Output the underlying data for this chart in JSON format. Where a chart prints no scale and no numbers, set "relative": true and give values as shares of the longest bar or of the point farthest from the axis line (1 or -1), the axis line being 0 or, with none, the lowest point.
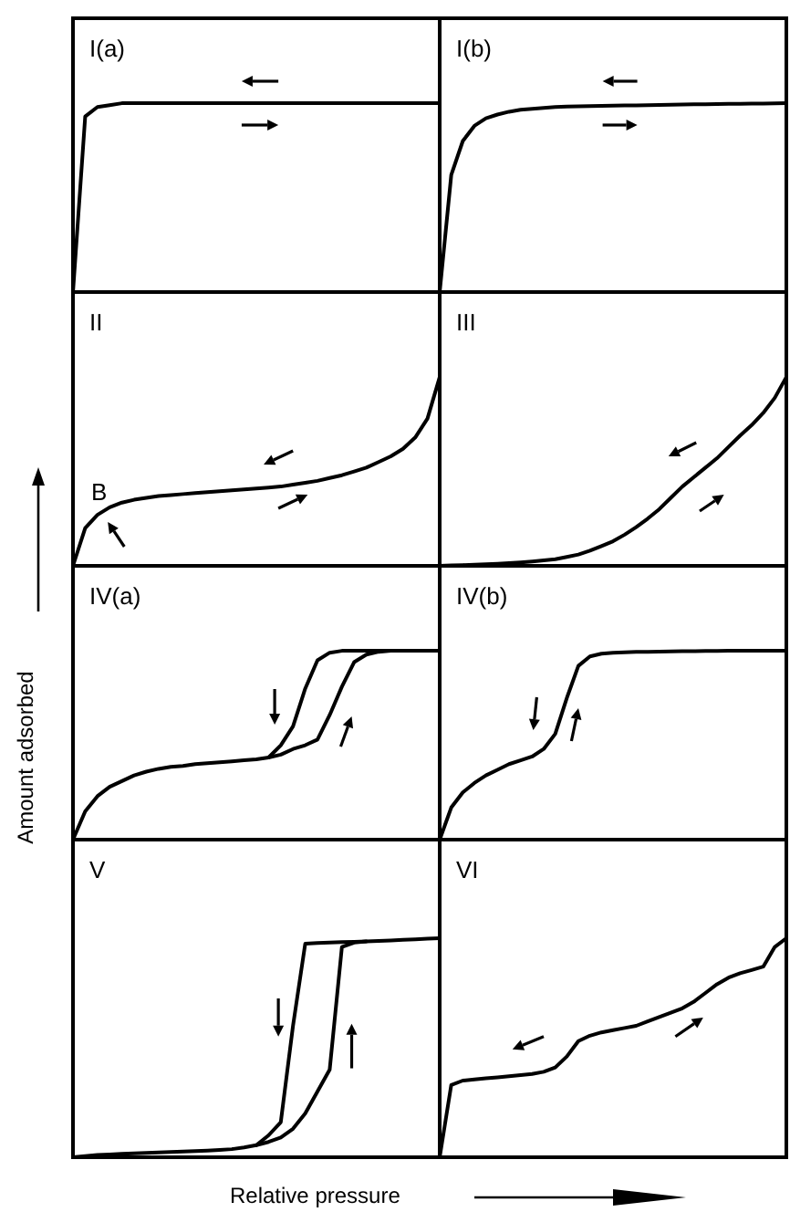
{
  "chart_data": [
    {
      "type": "line",
      "title": "I(a)",
      "relative": true,
      "categories": [
        null,
        null,
        null,
        null,
        null,
        null,
        null,
        null,
        null,
        null,
        null,
        null,
        null,
        null,
        null,
        null,
        null,
        null,
        null,
        null,
        null,
        null,
        null,
        null,
        null,
        null,
        null,
        null,
        null,
        null,
        null
      ],
      "series": [
        {
          "color": "#000000",
          "values": [
            0,
            0.93,
            0.98,
            0.99,
            1,
            1,
            1,
            1,
            1,
            1,
            1,
            1,
            1,
            1,
            1,
            1,
            1,
            1,
            1,
            1,
            1,
            1,
            1,
            1,
            1,
            1,
            1,
            1,
            1,
            1,
            1
          ]
        }
      ]
    },
    {
      "type": "line",
      "title": "I(b)",
      "relative": true,
      "categories": [
        null,
        null,
        null,
        null,
        null,
        null,
        null,
        null,
        null,
        null,
        null,
        null,
        null,
        null,
        null,
        null,
        null,
        null,
        null,
        null,
        null,
        null,
        null,
        null,
        null,
        null,
        null,
        null,
        null,
        null,
        null
      ],
      "series": [
        {
          "color": "#000000",
          "values": [
            0,
            0.62,
            0.8,
            0.88,
            0.92,
            0.94,
            0.955,
            0.965,
            0.97,
            0.975,
            0.98,
            0.982,
            0.984,
            0.985,
            0.986,
            0.987,
            0.988,
            0.989,
            0.99,
            0.991,
            0.992,
            0.993,
            0.994,
            0.995,
            0.996,
            0.997,
            0.997,
            0.998,
            0.998,
            0.999,
            1
          ]
        }
      ]
    },
    {
      "type": "line",
      "title": "II",
      "relative": true,
      "annotations": [
        "B"
      ],
      "categories": [
        null,
        null,
        null,
        null,
        null,
        null,
        null,
        null,
        null,
        null,
        null,
        null,
        null,
        null,
        null,
        null,
        null,
        null,
        null,
        null,
        null,
        null,
        null,
        null,
        null,
        null,
        null,
        null,
        null,
        null,
        null
      ],
      "series": [
        {
          "color": "#000000",
          "values": [
            0,
            0.2,
            0.27,
            0.31,
            0.335,
            0.35,
            0.36,
            0.37,
            0.375,
            0.38,
            0.385,
            0.39,
            0.395,
            0.4,
            0.405,
            0.41,
            0.415,
            0.42,
            0.43,
            0.44,
            0.45,
            0.465,
            0.48,
            0.5,
            0.52,
            0.55,
            0.58,
            0.62,
            0.68,
            0.78,
            1
          ]
        }
      ]
    },
    {
      "type": "line",
      "title": "III",
      "relative": true,
      "categories": [
        null,
        null,
        null,
        null,
        null,
        null,
        null,
        null,
        null,
        null,
        null,
        null,
        null,
        null,
        null,
        null,
        null,
        null,
        null,
        null,
        null,
        null,
        null,
        null,
        null,
        null,
        null,
        null,
        null,
        null,
        null
      ],
      "series": [
        {
          "color": "#000000",
          "values": [
            0,
            0.002,
            0.004,
            0.006,
            0.008,
            0.011,
            0.014,
            0.018,
            0.023,
            0.029,
            0.035,
            0.047,
            0.06,
            0.08,
            0.105,
            0.13,
            0.165,
            0.205,
            0.25,
            0.3,
            0.36,
            0.42,
            0.47,
            0.52,
            0.57,
            0.63,
            0.69,
            0.745,
            0.81,
            0.89,
            1
          ]
        }
      ]
    },
    {
      "type": "line",
      "title": "IV(a)",
      "ylabel": "Amount adsorbed",
      "relative": true,
      "categories": [
        null,
        null,
        null,
        null,
        null,
        null,
        null,
        null,
        null,
        null,
        null,
        null,
        null,
        null,
        null,
        null,
        null,
        null,
        null,
        null,
        null,
        null,
        null,
        null,
        null,
        null,
        null,
        null,
        null,
        null,
        null
      ],
      "series": [
        {
          "color": "#000000",
          "values": [
            0,
            0.15,
            0.23,
            0.28,
            0.31,
            0.34,
            0.36,
            0.375,
            0.385,
            0.39,
            0.4,
            0.405,
            0.41,
            0.415,
            0.42,
            0.425,
            0.435,
            0.45,
            0.48,
            0.5,
            0.53,
            0.66,
            0.81,
            0.94,
            0.98,
            0.995,
            1,
            1,
            1,
            1,
            1
          ]
        },
        {
          "color": "#000000",
          "values": [
            null,
            null,
            null,
            null,
            null,
            null,
            null,
            null,
            null,
            null,
            null,
            null,
            null,
            null,
            null,
            null,
            0.435,
            0.5,
            0.6,
            0.8,
            0.95,
            0.99,
            1,
            1,
            1,
            1,
            1,
            null,
            null,
            null,
            null
          ]
        }
      ]
    },
    {
      "type": "line",
      "title": "IV(b)",
      "relative": true,
      "categories": [
        null,
        null,
        null,
        null,
        null,
        null,
        null,
        null,
        null,
        null,
        null,
        null,
        null,
        null,
        null,
        null,
        null,
        null,
        null,
        null,
        null,
        null,
        null,
        null,
        null,
        null,
        null,
        null,
        null,
        null,
        null
      ],
      "series": [
        {
          "color": "#000000",
          "values": [
            0,
            0.17,
            0.25,
            0.3,
            0.34,
            0.37,
            0.4,
            0.42,
            0.44,
            0.48,
            0.56,
            0.75,
            0.92,
            0.97,
            0.985,
            0.99,
            0.992,
            0.994,
            0.995,
            0.996,
            0.997,
            0.998,
            0.998,
            0.999,
            0.999,
            1,
            1,
            1,
            1,
            1,
            1
          ]
        }
      ]
    },
    {
      "type": "line",
      "title": "V",
      "xlabel": "Relative pressure",
      "relative": true,
      "categories": [
        null,
        null,
        null,
        null,
        null,
        null,
        null,
        null,
        null,
        null,
        null,
        null,
        null,
        null,
        null,
        null,
        null,
        null,
        null,
        null,
        null,
        null,
        null,
        null,
        null,
        null,
        null,
        null,
        null,
        null,
        null
      ],
      "series": [
        {
          "color": "#000000",
          "values": [
            0,
            0.005,
            0.01,
            0.013,
            0.016,
            0.018,
            0.02,
            0.022,
            0.024,
            0.026,
            0.028,
            0.03,
            0.033,
            0.037,
            0.045,
            0.055,
            0.07,
            0.09,
            0.13,
            0.2,
            0.3,
            0.4,
            0.96,
            0.98,
            0.985,
            0.988,
            0.99,
            0.993,
            0.995,
            0.998,
            1
          ]
        },
        {
          "color": "#000000",
          "values": [
            null,
            null,
            null,
            null,
            null,
            null,
            null,
            null,
            null,
            null,
            null,
            null,
            null,
            null,
            null,
            0.055,
            0.1,
            0.16,
            0.6,
            0.975,
            0.978,
            0.98,
            0.982,
            0.983,
            0.985,
            null,
            null,
            null,
            null,
            null,
            null
          ]
        }
      ]
    },
    {
      "type": "line",
      "title": "VI",
      "relative": true,
      "categories": [
        null,
        null,
        null,
        null,
        null,
        null,
        null,
        null,
        null,
        null,
        null,
        null,
        null,
        null,
        null,
        null,
        null,
        null,
        null,
        null,
        null,
        null,
        null,
        null,
        null,
        null,
        null,
        null,
        null,
        null,
        null
      ],
      "series": [
        {
          "color": "#000000",
          "values": [
            0,
            0.33,
            0.35,
            0.355,
            0.36,
            0.365,
            0.37,
            0.375,
            0.38,
            0.39,
            0.41,
            0.46,
            0.53,
            0.555,
            0.57,
            0.58,
            0.59,
            0.6,
            0.62,
            0.64,
            0.66,
            0.68,
            0.71,
            0.75,
            0.79,
            0.82,
            0.84,
            0.855,
            0.87,
            0.96,
            1
          ]
        }
      ]
    }
  ]
}
